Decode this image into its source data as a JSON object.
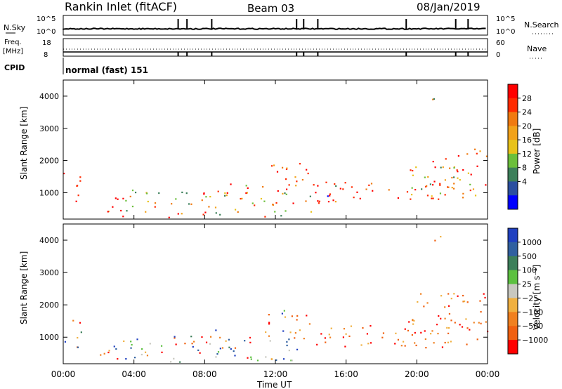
{
  "header": {
    "station": "Rankin Inlet (fitACF)",
    "beam": "Beam 03",
    "date": "08/Jan/2019"
  },
  "noise_panel": {
    "left_label": "N.Sky",
    "right_label": "N.Search",
    "left_ticks": [
      "10^5",
      "10^0"
    ],
    "right_ticks": [
      "10^5",
      "10^0"
    ]
  },
  "freq_panel": {
    "left_label_1": "Freq.",
    "left_label_2": "[MHz]",
    "right_label": "Nave",
    "left_ticks": [
      "18",
      "8"
    ],
    "right_ticks": [
      "60",
      "0"
    ]
  },
  "cpid_panel": {
    "label": "CPID",
    "text": "normal (fast) 151"
  },
  "chart_data": [
    {
      "type": "heatmap",
      "title": "",
      "xlabel": "Time UT",
      "ylabel": "Slant Range [km]",
      "x_ticks": [
        "00:00",
        "04:00",
        "08:00",
        "12:00",
        "16:00",
        "20:00",
        "00:00"
      ],
      "y_ticks": [
        1000,
        2000,
        3000,
        4000
      ],
      "xlim_hours": [
        0,
        24
      ],
      "ylim_km": [
        180,
        4500
      ],
      "colorbar": {
        "label": "Power [dB]",
        "ticks": [
          "4",
          "8",
          "12",
          "16",
          "20",
          "24",
          "28"
        ],
        "colors": [
          "#0000ff",
          "#2b4fa0",
          "#3c7f5a",
          "#6bbf3b",
          "#e8c21a",
          "#f2a21a",
          "#f07a10",
          "#ff2a00",
          "#ff0000"
        ]
      },
      "echo_regions": [
        {
          "t": [
            0.0,
            1.0
          ],
          "r": [
            700,
            1700
          ],
          "level": "high"
        },
        {
          "t": [
            1.8,
            3.5
          ],
          "r": [
            250,
            900
          ],
          "level": "high"
        },
        {
          "t": [
            3.5,
            8.5
          ],
          "r": [
            250,
            1100
          ],
          "level": "mixed"
        },
        {
          "t": [
            8.5,
            11.5
          ],
          "r": [
            250,
            1300
          ],
          "level": "mixed"
        },
        {
          "t": [
            11.5,
            14.0
          ],
          "r": [
            300,
            2000
          ],
          "level": "mixed"
        },
        {
          "t": [
            14.0,
            22.0
          ],
          "r": [
            700,
            1400
          ],
          "level": "high"
        },
        {
          "t": [
            19.5,
            24.0
          ],
          "r": [
            800,
            2400
          ],
          "level": "mixed"
        },
        {
          "t": [
            20.8,
            21.4
          ],
          "r": [
            3800,
            4300
          ],
          "level": "mixed"
        }
      ]
    },
    {
      "type": "heatmap",
      "title": "",
      "xlabel": "Time UT",
      "ylabel": "Slant Range [km]",
      "x_ticks": [
        "00:00",
        "04:00",
        "08:00",
        "12:00",
        "16:00",
        "20:00",
        "00:00"
      ],
      "y_ticks": [
        1000,
        2000,
        3000,
        4000
      ],
      "xlim_hours": [
        0,
        24
      ],
      "ylim_km": [
        180,
        4500
      ],
      "colorbar": {
        "label": "Velocity [m s⁻¹]",
        "ticks": [
          "1000",
          "500",
          "100",
          "25",
          "−25",
          "−100",
          "−500",
          "−1000"
        ],
        "colors": [
          "#2040c0",
          "#3060a0",
          "#3c7f5a",
          "#5cc040",
          "#c8c8c0",
          "#f0b040",
          "#f08020",
          "#f06010",
          "#ff0000"
        ]
      },
      "echo_regions": [
        {
          "t": [
            0.0,
            1.0
          ],
          "r": [
            700,
            1700
          ],
          "level": "mixed"
        },
        {
          "t": [
            1.8,
            3.5
          ],
          "r": [
            250,
            900
          ],
          "level": "mixed"
        },
        {
          "t": [
            3.5,
            8.5
          ],
          "r": [
            250,
            1100
          ],
          "level": "mixed"
        },
        {
          "t": [
            8.5,
            11.5
          ],
          "r": [
            250,
            1300
          ],
          "level": "mixed"
        },
        {
          "t": [
            11.5,
            14.0
          ],
          "r": [
            300,
            2000
          ],
          "level": "mixed"
        },
        {
          "t": [
            14.0,
            22.0
          ],
          "r": [
            700,
            1400
          ],
          "level": "negative"
        },
        {
          "t": [
            19.5,
            24.0
          ],
          "r": [
            800,
            2400
          ],
          "level": "negative"
        },
        {
          "t": [
            20.8,
            21.4
          ],
          "r": [
            3800,
            4300
          ],
          "level": "mixed"
        }
      ]
    }
  ]
}
